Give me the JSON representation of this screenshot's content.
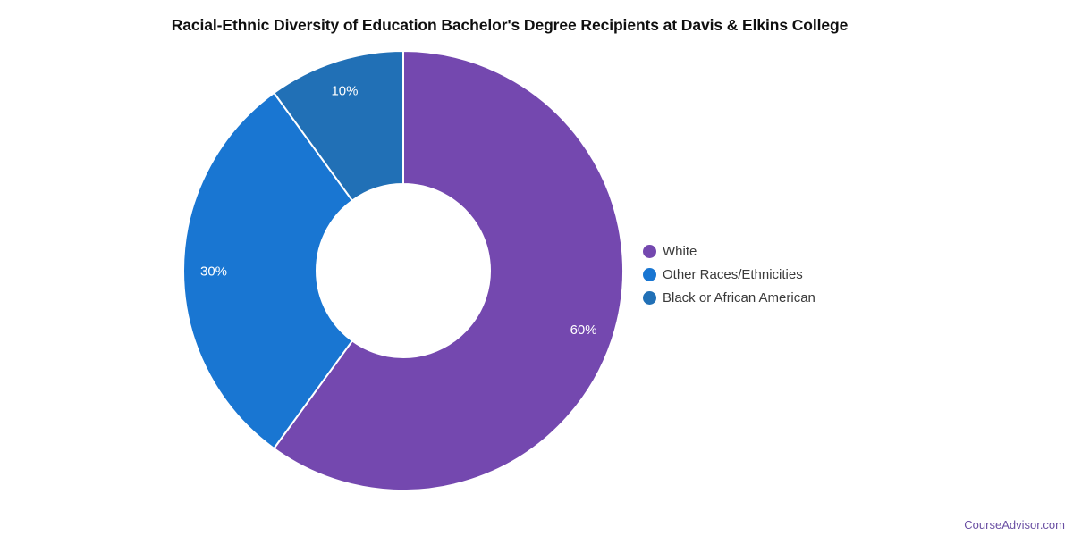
{
  "title": "Racial-Ethnic Diversity of Education Bachelor's Degree Recipients at Davis & Elkins College",
  "footer": {
    "link_text": "CourseAdvisor.com",
    "link_color": "#6a4fa3"
  },
  "chart_data": {
    "type": "pie",
    "subtype": "donut",
    "title": "Racial-Ethnic Diversity of Education Bachelor's Degree Recipients at Davis & Elkins College",
    "direction": "clockwise",
    "start_angle_deg_from_top": 0,
    "legend_position": "right",
    "slice_border_color": "#ffffff",
    "label_text_color": "#ffffff",
    "slices": [
      {
        "label": "White",
        "value": 60,
        "pct_label": "60%",
        "color": "#7448af"
      },
      {
        "label": "Other Races/Ethnicities",
        "value": 30,
        "pct_label": "30%",
        "color": "#1976d2"
      },
      {
        "label": "Black or African American",
        "value": 10,
        "pct_label": "10%",
        "color": "#2170b6"
      }
    ]
  }
}
